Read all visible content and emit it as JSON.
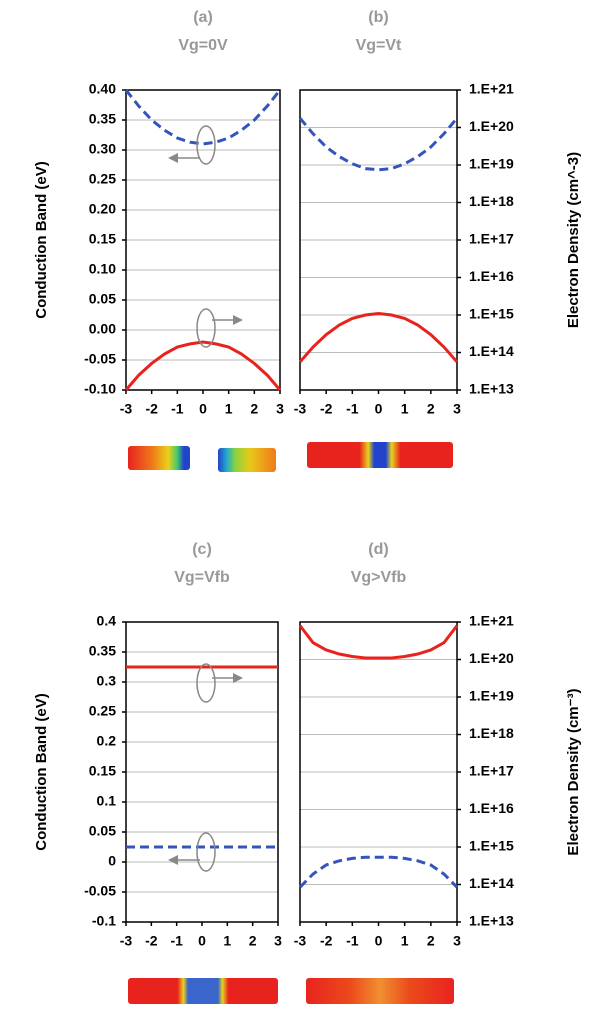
{
  "chart_data": [
    {
      "type": "line",
      "title": "(a)",
      "subtitle": "Vg=0V",
      "ylabel": "Conduction Band (eV)",
      "x": [
        -3,
        -2.5,
        -2,
        -1.5,
        -1,
        -0.5,
        0,
        0.5,
        1,
        1.5,
        2,
        2.5,
        3
      ],
      "xlim": [
        -3,
        3
      ],
      "xticks": [
        -3,
        -2,
        -1,
        0,
        1,
        2,
        3
      ],
      "ylim": [
        -0.1,
        0.4
      ],
      "yticks": [
        {
          "value": 0.4,
          "label": "0.40"
        },
        0.35,
        {
          "value": 0.3,
          "label": "0.30"
        },
        0.25,
        {
          "value": 0.2,
          "label": "0.20"
        },
        0.15,
        {
          "value": 0.1,
          "label": "0.10"
        },
        0.05,
        {
          "value": 0,
          "label": "0.00"
        },
        -0.05,
        {
          "value": -0.1,
          "label": "-0.10"
        }
      ],
      "y2lim": [
        10000000000000.0,
        1e+21
      ],
      "y2log": true,
      "grid": true,
      "series": [
        {
          "color": "#3355bb",
          "linestyle": "dashed",
          "values": [
            0.4,
            0.373,
            0.35,
            0.333,
            0.32,
            0.313,
            0.31,
            0.313,
            0.32,
            0.333,
            0.35,
            0.373,
            0.4
          ]
        },
        {
          "color": "#e8231e",
          "linestyle": "solid",
          "axis": "y2",
          "values": [
            10000000000000.0,
            25000000000000.0,
            51000000000000.0,
            91000000000000.0,
            140000000000000.0,
            170000000000000.0,
            190000000000000.0,
            170000000000000.0,
            140000000000000.0,
            91000000000000.0,
            51000000000000.0,
            25000000000000.0,
            10000000000000.0
          ]
        }
      ]
    },
    {
      "type": "line",
      "title": "(b)",
      "subtitle": "Vg=Vt",
      "y2label": "Electron Density (cm^-3)",
      "x": [
        -3,
        -2.5,
        -2,
        -1.5,
        -1,
        -0.5,
        0,
        0.5,
        1,
        1.5,
        2,
        2.5,
        3
      ],
      "xlim": [
        -3,
        3
      ],
      "xticks": [
        -3,
        -2,
        -1,
        0,
        1,
        2,
        3
      ],
      "ylim": [
        -0.1,
        0.4
      ],
      "y2lim": [
        10000000000000.0,
        1e+21
      ],
      "y2log": true,
      "y2ticks": [
        {
          "value": 1e+21,
          "label": "1.E+21"
        },
        {
          "value": 1e+20,
          "label": "1.E+20"
        },
        {
          "value": 1e+19,
          "label": "1.E+19"
        },
        {
          "value": 1e+18,
          "label": "1.E+18"
        },
        {
          "value": 1e+17,
          "label": "1.E+17"
        },
        {
          "value": 1e+16,
          "label": "1.E+16"
        },
        {
          "value": 1000000000000000.0,
          "label": "1.E+15"
        },
        {
          "value": 100000000000000.0,
          "label": "1.E+14"
        },
        {
          "value": 10000000000000.0,
          "label": "1.E+13"
        }
      ],
      "grid": true,
      "series": [
        {
          "color": "#3355bb",
          "linestyle": "dashed",
          "values": [
            0.353,
            0.327,
            0.305,
            0.289,
            0.277,
            0.269,
            0.267,
            0.269,
            0.277,
            0.289,
            0.305,
            0.327,
            0.353
          ]
        },
        {
          "color": "#e8231e",
          "linestyle": "solid",
          "axis": "y2",
          "values": [
            56000000000000.0,
            140000000000000.0,
            300000000000000.0,
            540000000000000.0,
            810000000000000.0,
            1000000000000000.0,
            1100000000000000.0,
            1000000000000000.0,
            810000000000000.0,
            540000000000000.0,
            300000000000000.0,
            140000000000000.0,
            56000000000000.0
          ]
        }
      ]
    },
    {
      "type": "line",
      "title": "(c)",
      "subtitle": "Vg=Vfb",
      "ylabel": "Conduction Band (eV)",
      "x": [
        -3,
        -2.5,
        -2,
        -1.5,
        -1,
        -0.5,
        0,
        0.5,
        1,
        1.5,
        2,
        2.5,
        3
      ],
      "xlim": [
        -3,
        3
      ],
      "xticks": [
        -3,
        -2,
        -1,
        0,
        1,
        2,
        3
      ],
      "ylim": [
        -0.1,
        0.4
      ],
      "yticks": [
        0.4,
        0.35,
        0.3,
        0.25,
        0.2,
        0.15,
        0.1,
        0.05,
        0,
        -0.05,
        -0.1
      ],
      "y2lim": [
        10000000000000.0,
        1e+21
      ],
      "y2log": true,
      "grid": true,
      "series": [
        {
          "color": "#3355bb",
          "linestyle": "dashed",
          "values": [
            0.025,
            0.025,
            0.025,
            0.025,
            0.025,
            0.025,
            0.025,
            0.025,
            0.025,
            0.025,
            0.025,
            0.025,
            0.025
          ]
        },
        {
          "color": "#e8231e",
          "linestyle": "solid",
          "axis": "y2",
          "values": [
            6.3e+19,
            6.3e+19,
            6.3e+19,
            6.3e+19,
            6.3e+19,
            6.3e+19,
            6.3e+19,
            6.3e+19,
            6.3e+19,
            6.3e+19,
            6.3e+19,
            6.3e+19,
            6.3e+19
          ]
        }
      ]
    },
    {
      "type": "line",
      "title": "(d)",
      "subtitle": "Vg>Vfb",
      "y2label": "Electron Density (cm⁻³)",
      "x": [
        -3,
        -2.5,
        -2,
        -1.5,
        -1,
        -0.5,
        0,
        0.5,
        1,
        1.5,
        2,
        2.5,
        3
      ],
      "xlim": [
        -3,
        3
      ],
      "xticks": [
        -3,
        -2,
        -1,
        0,
        1,
        2,
        3
      ],
      "ylim": [
        -0.1,
        0.4
      ],
      "y2lim": [
        10000000000000.0,
        1e+21
      ],
      "y2log": true,
      "y2ticks": [
        {
          "value": 1e+21,
          "label": "1.E+21"
        },
        {
          "value": 1e+20,
          "label": "1.E+20"
        },
        {
          "value": 1e+19,
          "label": "1.E+19"
        },
        {
          "value": 1e+18,
          "label": "1.E+18"
        },
        {
          "value": 1e+17,
          "label": "1.E+17"
        },
        {
          "value": 1e+16,
          "label": "1.E+16"
        },
        {
          "value": 1000000000000000.0,
          "label": "1.E+15"
        },
        {
          "value": 100000000000000.0,
          "label": "1.E+14"
        },
        {
          "value": 10000000000000.0,
          "label": "1.E+13"
        }
      ],
      "grid": true,
      "series": [
        {
          "color": "#3355bb",
          "linestyle": "dashed",
          "values": [
            -0.042,
            -0.02,
            -0.005,
            0.002,
            0.006,
            0.008,
            0.008,
            0.008,
            0.006,
            0.002,
            -0.005,
            -0.02,
            -0.042
          ]
        },
        {
          "color": "#e8231e",
          "linestyle": "solid",
          "axis": "y2",
          "values": [
            8e+20,
            2.8e+20,
            1.8e+20,
            1.4e+20,
            1.2e+20,
            1.1e+20,
            1.1e+20,
            1.1e+20,
            1.2e+20,
            1.4e+20,
            1.8e+20,
            2.8e+20,
            8e+20
          ]
        }
      ]
    }
  ]
}
